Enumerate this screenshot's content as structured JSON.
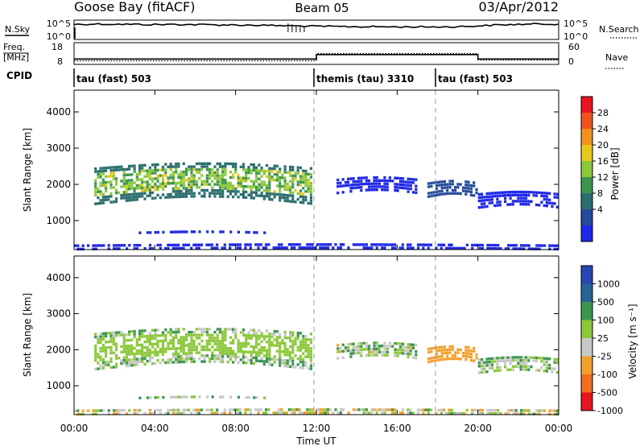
{
  "header": {
    "station": "Goose Bay (fitACF)",
    "beam": "Beam 05",
    "date": "03/Apr/2012"
  },
  "noise_panel": {
    "left_label": "N.Sky",
    "right_label": "N.Search",
    "left_ticks": [
      "10^5",
      "10^0"
    ],
    "right_ticks": [
      "10^5",
      "10^0"
    ]
  },
  "freq_panel": {
    "left_label_line1": "Freq.",
    "left_label_line2": "[MHz]",
    "right_label": "Nave",
    "left_ticks": [
      "18",
      "8"
    ],
    "right_ticks": [
      "60",
      "0"
    ]
  },
  "cpid": {
    "label": "CPID",
    "segments": [
      {
        "name": "tau (fast) 503",
        "start_h": 0
      },
      {
        "name": "themis (tau) 3310",
        "start_h": 12
      },
      {
        "name": "tau (fast) 503",
        "start_h": 18
      }
    ]
  },
  "power_colorbar": {
    "title": "Power [dB]",
    "ticks": [
      "28",
      "24",
      "20",
      "16",
      "12",
      "8",
      "4"
    ],
    "colors": [
      "#e8141e",
      "#f0541e",
      "#f2921e",
      "#e8c81e",
      "#8cc83c",
      "#3c9650",
      "#2c6e6e",
      "#234a9b",
      "#1e28e6"
    ]
  },
  "velocity_colorbar": {
    "title": "Velocity [m s⁻¹]",
    "ticks": [
      "1000",
      "500",
      "100",
      "25",
      "-25",
      "-100",
      "-500",
      "-1000"
    ],
    "colors": [
      "#2846b4",
      "#286496",
      "#3c9650",
      "#8cc83c",
      "#c8c8c8",
      "#f2a02e",
      "#f06e1e",
      "#e8141e"
    ]
  },
  "chart_data": [
    {
      "type": "line",
      "title": "",
      "x": [
        0,
        1,
        2,
        3,
        4,
        5,
        6,
        7,
        8,
        9,
        10,
        11,
        12,
        13,
        14,
        15,
        16,
        17,
        18,
        19,
        20,
        21,
        22,
        23,
        24
      ],
      "series": [
        {
          "name": "N.Sky",
          "values": [
            0.78,
            0.8,
            0.79,
            0.78,
            0.77,
            0.78,
            0.77,
            0.76,
            0.75,
            0.74,
            0.72,
            0.7,
            0.68,
            0.67,
            0.66,
            0.66,
            0.65,
            0.65,
            0.65,
            0.66,
            0.7,
            0.75,
            0.78,
            0.8,
            0.8
          ]
        }
      ],
      "ylim": [
        0,
        1
      ]
    },
    {
      "type": "line",
      "title": "",
      "x": [
        0,
        12,
        12,
        20,
        20,
        24
      ],
      "series": [
        {
          "name": "Freq. [MHz]",
          "values": [
            10.5,
            10.5,
            12.5,
            12.5,
            10.5,
            10.5
          ]
        },
        {
          "name": "Nave",
          "values": [
            10,
            10,
            30,
            30,
            12,
            12
          ]
        }
      ]
    },
    {
      "type": "heatmap",
      "title": "Power",
      "xlabel": "",
      "ylabel": "Slant Range [km]",
      "xlim": [
        0,
        24
      ],
      "ylim": [
        200,
        4600
      ],
      "yticks": [
        1000,
        2000,
        3000,
        4000
      ],
      "zlim": [
        0,
        32
      ],
      "echo_bands": [
        {
          "range_km": [
            1500,
            2900
          ],
          "hours": [
            1.0,
            11.8
          ],
          "level": 15
        },
        {
          "range_km": [
            1800,
            2400
          ],
          "hours": [
            13.0,
            17.0
          ],
          "level": 7
        },
        {
          "range_km": [
            1700,
            2300
          ],
          "hours": [
            17.5,
            20.0
          ],
          "level": 14
        },
        {
          "range_km": [
            1400,
            2000
          ],
          "hours": [
            20.0,
            24.0
          ],
          "level": 10
        },
        {
          "range_km": [
            700,
            900
          ],
          "hours": [
            3.2,
            9.5
          ],
          "level": 7
        },
        {
          "range_km": [
            250,
            500
          ],
          "hours": [
            0.0,
            24.0
          ],
          "level": 10
        }
      ]
    },
    {
      "type": "heatmap",
      "title": "Velocity",
      "xlabel": "Time UT",
      "ylabel": "Slant Range [km]",
      "xlim": [
        0,
        24
      ],
      "ylim": [
        200,
        4600
      ],
      "yticks": [
        1000,
        2000,
        3000,
        4000
      ],
      "xticks": [
        "00:00",
        "04:00",
        "08:00",
        "12:00",
        "16:00",
        "20:00",
        "00:00"
      ],
      "xtick_hours": [
        0,
        4,
        8,
        12,
        16,
        20,
        24
      ],
      "zlim": [
        -1000,
        1000
      ],
      "echo_bands": [
        {
          "range_km": [
            1500,
            2900
          ],
          "hours": [
            1.0,
            11.8
          ],
          "value": 0
        },
        {
          "range_km": [
            1800,
            2400
          ],
          "hours": [
            13.0,
            17.0
          ],
          "value": -10
        },
        {
          "range_km": [
            1800,
            2100
          ],
          "hours": [
            11.0,
            12.0
          ],
          "value": -300
        },
        {
          "range_km": [
            1700,
            2300
          ],
          "hours": [
            17.5,
            20.0
          ],
          "value": 0
        },
        {
          "range_km": [
            1400,
            2000
          ],
          "hours": [
            20.0,
            24.0
          ],
          "value": 0
        },
        {
          "range_km": [
            250,
            500
          ],
          "hours": [
            0.0,
            24.0
          ],
          "value": -50
        }
      ]
    }
  ]
}
